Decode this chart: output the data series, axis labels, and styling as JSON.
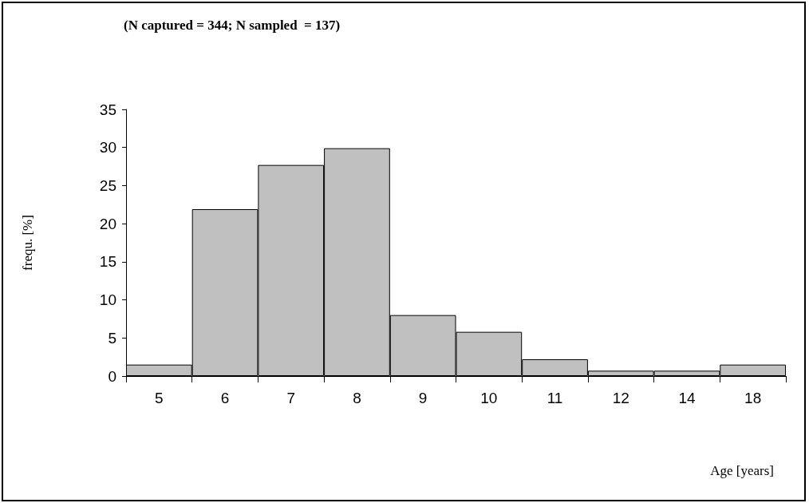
{
  "chart_data": {
    "type": "bar",
    "title": "(N captured = 344; N sampled  = 137)",
    "xlabel": "Age [years]",
    "ylabel": "frequ. [%]",
    "categories": [
      "5",
      "6",
      "7",
      "8",
      "9",
      "10",
      "11",
      "12",
      "14",
      "18"
    ],
    "values": [
      1.5,
      21.9,
      27.7,
      29.9,
      8.0,
      5.8,
      2.2,
      0.7,
      0.7,
      1.5
    ],
    "color": "#c0c0c0",
    "ylim": [
      0,
      35
    ],
    "yticks": [
      0,
      5,
      10,
      15,
      20,
      25,
      30,
      35
    ],
    "grid": false
  }
}
